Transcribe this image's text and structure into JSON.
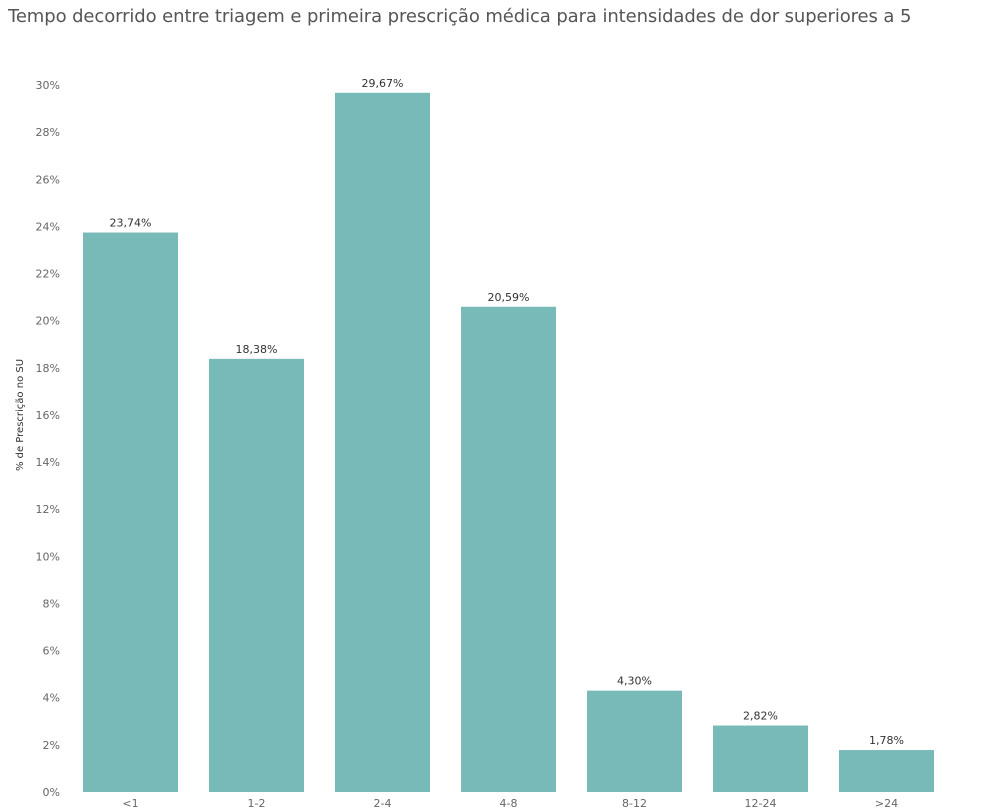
{
  "chart_data": {
    "type": "bar",
    "title": "Tempo decorrido entre triagem e primeira prescrição médica para intensidades de dor superiores a 5",
    "ylabel": "% de Prescrição no SU",
    "xlabel": "",
    "categories": [
      "<1",
      "1-2",
      "2-4",
      "4-8",
      "8-12",
      "12-24",
      ">24"
    ],
    "values": [
      23.74,
      18.38,
      29.67,
      20.59,
      4.3,
      2.82,
      1.78
    ],
    "data_labels": [
      "23,74%",
      "18,38%",
      "29,67%",
      "20,59%",
      "4,30%",
      "2,82%",
      "1,78%"
    ],
    "ylim": [
      0,
      30
    ],
    "yticks": [
      0,
      2,
      4,
      6,
      8,
      10,
      12,
      14,
      16,
      18,
      20,
      22,
      24,
      26,
      28,
      30
    ],
    "ytick_labels": [
      "0%",
      "2%",
      "4%",
      "6%",
      "8%",
      "10%",
      "12%",
      "14%",
      "16%",
      "18%",
      "20%",
      "22%",
      "24%",
      "26%",
      "28%",
      "30%"
    ],
    "bar_color": "#78bab8",
    "grid": false,
    "legend": "none"
  }
}
